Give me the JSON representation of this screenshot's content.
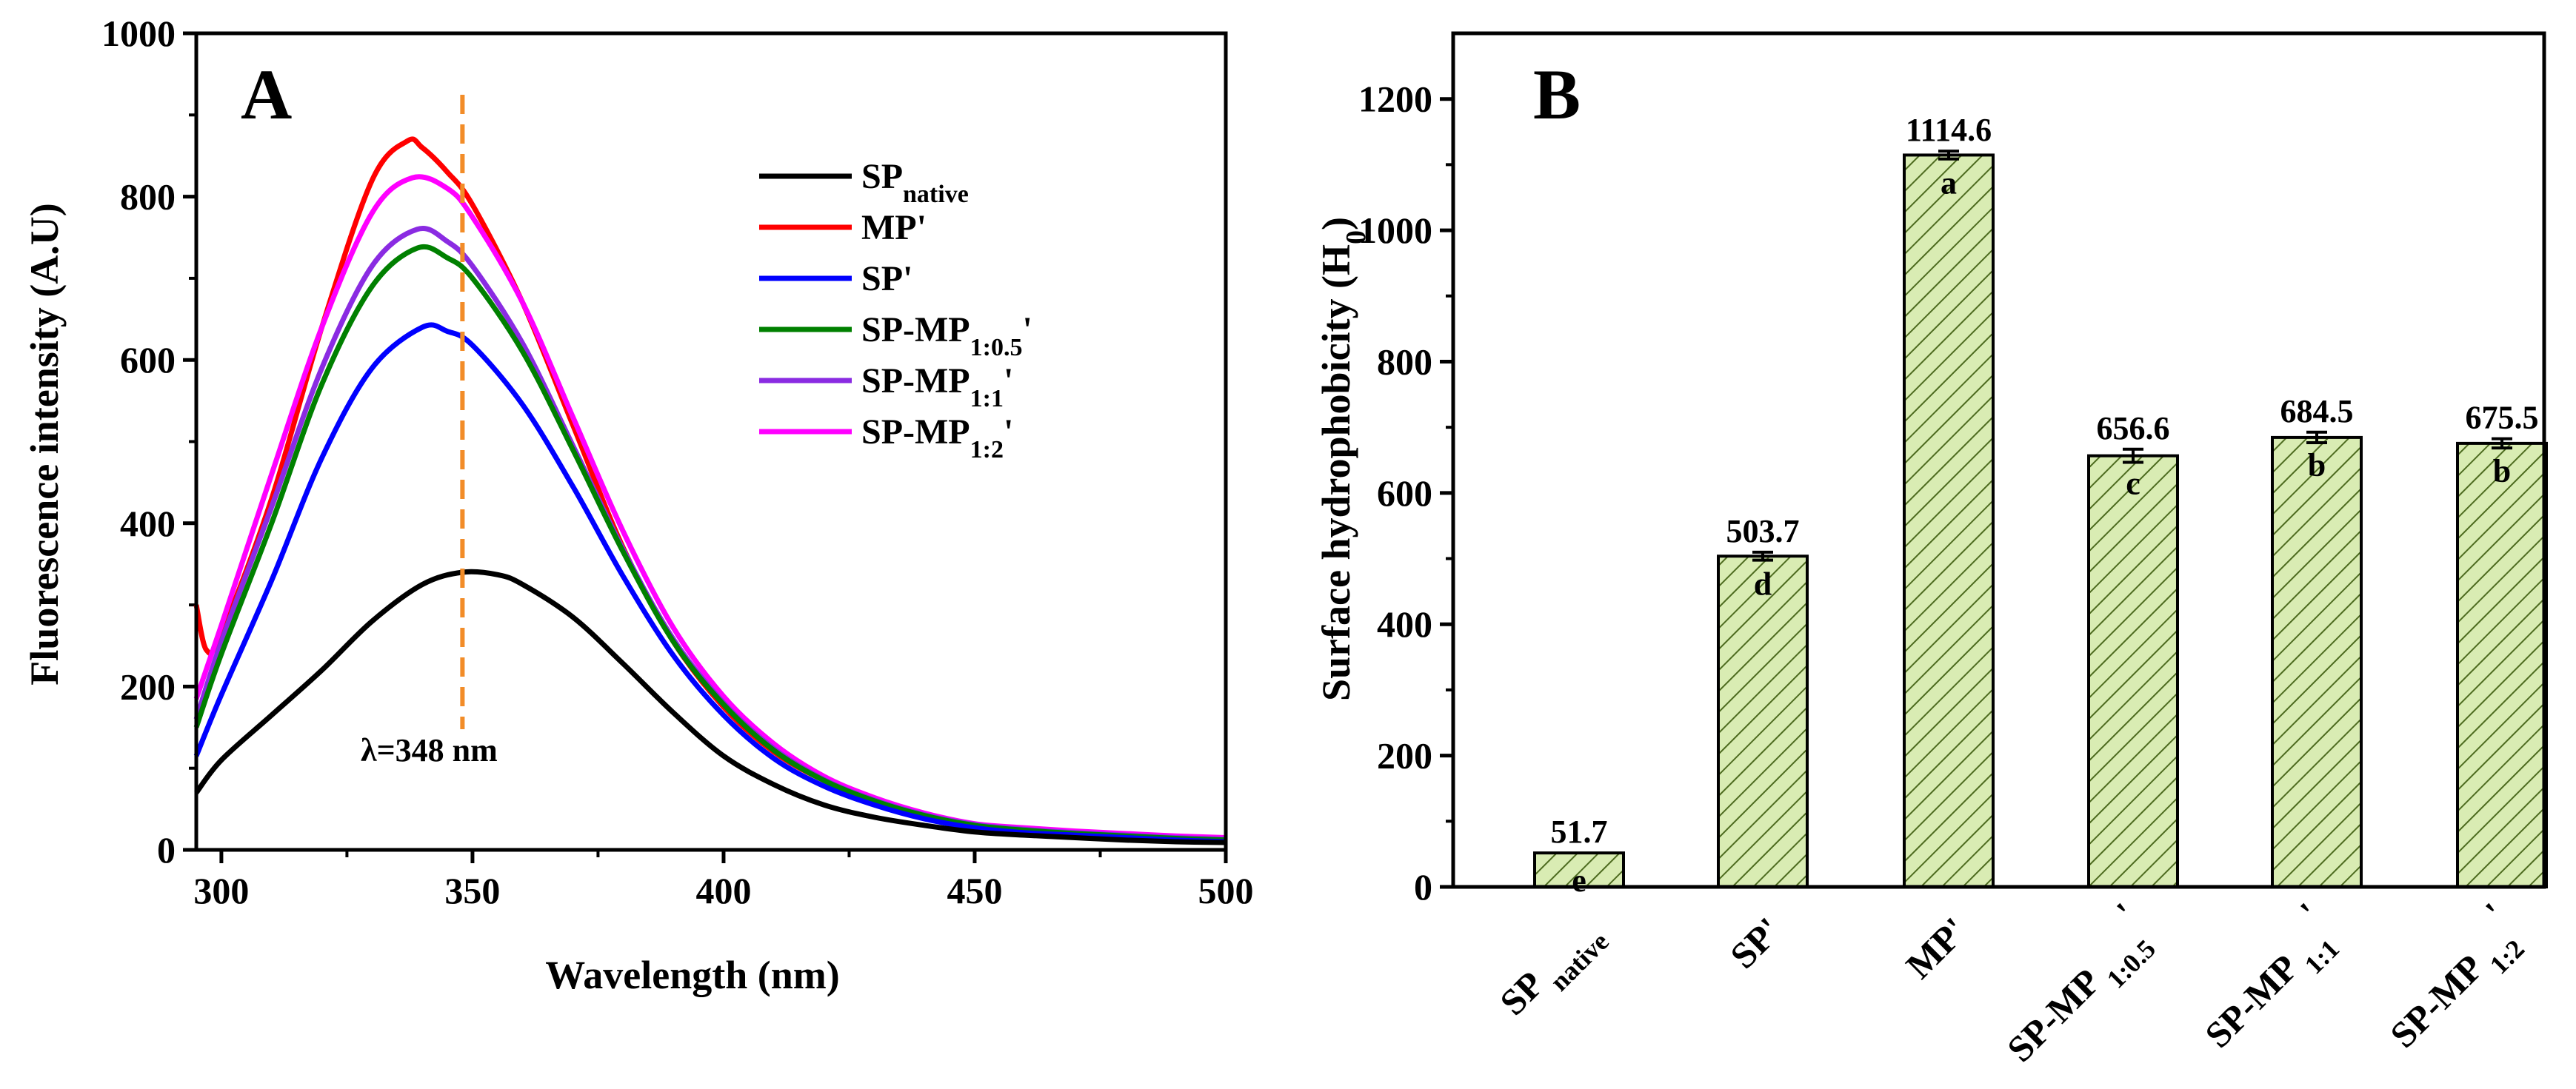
{
  "colors": {
    "sp_native": "#000000",
    "mp": "#ff0000",
    "sp": "#0000ff",
    "sp_mp_1_0_5": "#008000",
    "sp_mp_1_1": "#8a2be2",
    "sp_mp_1_2": "#ff00ff",
    "dashed_line": "#f28c28",
    "bar_fill": "#d9ecb3",
    "bar_hatch": "#4d6b1f"
  },
  "chart_data": [
    {
      "type": "line",
      "panel_label": "A",
      "xlabel": "Wavelength (nm)",
      "ylabel": "Fluorescence intensity (A.U)",
      "xlim": [
        295,
        500
      ],
      "ylim": [
        0,
        1000
      ],
      "xticks": [
        "300",
        "350",
        "400",
        "450",
        "500"
      ],
      "yticks": [
        "0",
        "200",
        "400",
        "600",
        "800",
        "1000"
      ],
      "legend_position": "top-right",
      "annotation": {
        "text": "λ=348 nm",
        "x": 348
      },
      "series": [
        {
          "name_base": "SP",
          "name_sub": "native",
          "name_suffix": "",
          "color_key": "sp_native",
          "x": [
            295,
            300,
            310,
            320,
            330,
            340,
            348,
            355,
            360,
            370,
            380,
            390,
            400,
            410,
            420,
            430,
            440,
            450,
            460,
            470,
            480,
            490,
            500
          ],
          "y": [
            70,
            110,
            165,
            220,
            280,
            325,
            340,
            337,
            325,
            285,
            228,
            168,
            115,
            80,
            55,
            40,
            30,
            22,
            18,
            15,
            12,
            10,
            9
          ]
        },
        {
          "name_base": "MP'",
          "name_sub": "",
          "name_suffix": "",
          "color_key": "mp",
          "x": [
            295,
            297,
            300,
            310,
            320,
            330,
            337,
            340,
            345,
            350,
            360,
            370,
            380,
            390,
            400,
            410,
            420,
            430,
            440,
            450,
            460,
            470,
            480,
            490,
            500
          ],
          "y": [
            300,
            245,
            265,
            430,
            640,
            820,
            868,
            860,
            830,
            790,
            670,
            520,
            370,
            255,
            175,
            120,
            85,
            60,
            40,
            28,
            24,
            21,
            18,
            15,
            14
          ]
        },
        {
          "name_base": "SP'",
          "name_sub": "",
          "name_suffix": "",
          "color_key": "sp",
          "x": [
            295,
            300,
            310,
            320,
            330,
            340,
            345,
            350,
            360,
            370,
            380,
            390,
            400,
            410,
            420,
            430,
            440,
            450,
            460,
            470,
            480,
            490,
            500
          ],
          "y": [
            115,
            190,
            330,
            480,
            590,
            640,
            635,
            618,
            545,
            445,
            335,
            238,
            165,
            112,
            78,
            55,
            38,
            27,
            21,
            18,
            15,
            12,
            10
          ]
        },
        {
          "name_base": "SP-MP",
          "name_sub": "1:0.5",
          "name_suffix": "'",
          "color_key": "sp_mp_1_0_5",
          "x": [
            295,
            300,
            310,
            320,
            330,
            339,
            345,
            350,
            360,
            370,
            380,
            390,
            400,
            410,
            420,
            430,
            440,
            450,
            460,
            470,
            480,
            490,
            500
          ],
          "y": [
            150,
            240,
            400,
            570,
            690,
            737,
            725,
            700,
            610,
            490,
            365,
            255,
            178,
            122,
            85,
            60,
            42,
            30,
            24,
            20,
            17,
            14,
            12
          ]
        },
        {
          "name_base": "SP-MP",
          "name_sub": "1:1",
          "name_suffix": "'",
          "color_key": "sp_mp_1_1",
          "x": [
            295,
            300,
            310,
            320,
            330,
            339,
            345,
            350,
            360,
            370,
            380,
            390,
            400,
            410,
            420,
            430,
            440,
            450,
            460,
            470,
            480,
            490,
            500
          ],
          "y": [
            160,
            255,
            420,
            590,
            715,
            760,
            745,
            715,
            620,
            495,
            368,
            258,
            180,
            124,
            86,
            61,
            43,
            31,
            25,
            21,
            18,
            15,
            13
          ]
        },
        {
          "name_base": "SP-MP",
          "name_sub": "1:2",
          "name_suffix": "'",
          "color_key": "sp_mp_1_2",
          "x": [
            295,
            300,
            310,
            320,
            330,
            338,
            345,
            350,
            360,
            370,
            380,
            390,
            400,
            410,
            420,
            430,
            440,
            450,
            460,
            470,
            480,
            490,
            500
          ],
          "y": [
            185,
            275,
            460,
            640,
            780,
            823,
            810,
            775,
            670,
            530,
            390,
            272,
            188,
            130,
            90,
            64,
            45,
            32,
            27,
            23,
            20,
            17,
            15
          ]
        }
      ]
    },
    {
      "type": "bar",
      "panel_label": "B",
      "ylabel_base": "Surface hydrophobicity (H",
      "ylabel_sub": "0",
      "ylabel_end": ")",
      "ylim": [
        0,
        1300
      ],
      "yticks": [
        "0",
        "200",
        "400",
        "600",
        "800",
        "1000",
        "1200"
      ],
      "categories": [
        {
          "base": "SP",
          "sub": " native",
          "suffix": ""
        },
        {
          "base": "SP'",
          "sub": "",
          "suffix": ""
        },
        {
          "base": "MP'",
          "sub": "",
          "suffix": ""
        },
        {
          "base": "SP-MP",
          "sub": " 1:0.5",
          "suffix": "'"
        },
        {
          "base": "SP-MP",
          "sub": " 1:1",
          "suffix": "'"
        },
        {
          "base": "SP-MP",
          "sub": " 1:2",
          "suffix": "'"
        }
      ],
      "values": [
        51.7,
        503.7,
        1114.6,
        656.6,
        684.5,
        675.5
      ],
      "value_labels": [
        "51.7",
        "503.7",
        "1114.6",
        "656.6",
        "684.5",
        "675.5"
      ],
      "errors": [
        0,
        6,
        6,
        10,
        8,
        7
      ],
      "letters": [
        "e",
        "d",
        "a",
        "c",
        "b",
        "b"
      ]
    }
  ]
}
